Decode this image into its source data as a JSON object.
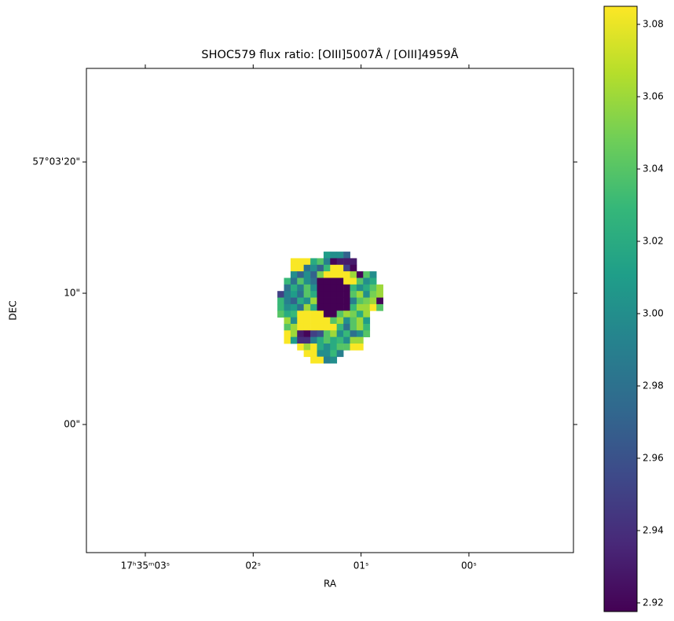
{
  "chart_data": {
    "type": "heatmap",
    "title": "SHOC579 flux ratio: [OIII]5007Å / [OIII]4959Å",
    "x_label": "RA",
    "y_label": "DEC",
    "colormap": "viridis",
    "xlim": [
      3.546,
      -0.969
    ],
    "ylim": [
      -9.76,
      27.13
    ],
    "xticks": [
      {
        "value": 3,
        "label": "17ʰ35ᵐ03ˢ"
      },
      {
        "value": 2,
        "label": "02ˢ"
      },
      {
        "value": 1,
        "label": "01ˢ"
      },
      {
        "value": 0,
        "label": "00ˢ"
      }
    ],
    "yticks": [
      {
        "value": 20,
        "label": "57°03'20\""
      },
      {
        "value": 10,
        "label": "10\""
      },
      {
        "value": 0,
        "label": "00\""
      }
    ],
    "clim": [
      2.9176,
      3.085
    ],
    "cticks": [
      2.92,
      2.94,
      2.96,
      2.98,
      {
        "value": 3,
        "label": "3.00"
      },
      3.02,
      3.04,
      3.06,
      3.08
    ],
    "x": [
      1.745,
      1.684,
      1.623,
      1.562,
      1.501,
      1.439,
      1.378,
      1.317,
      1.256,
      1.195,
      1.133,
      1.072,
      1.011,
      0.95,
      0.889,
      0.827,
      0.766
    ],
    "y": [
      12.92,
      12.42,
      11.92,
      11.42,
      10.92,
      10.42,
      9.92,
      9.42,
      8.92,
      8.42,
      7.92,
      7.42,
      6.92,
      6.42,
      5.92,
      5.42,
      4.92
    ],
    "values": [
      [
        null,
        null,
        null,
        null,
        null,
        null,
        null,
        3.01,
        3.0,
        3.0,
        2.97,
        null,
        null,
        null,
        null,
        null,
        null
      ],
      [
        null,
        null,
        3.084,
        3.084,
        3.084,
        3.02,
        3.04,
        2.99,
        2.92,
        2.93,
        2.93,
        2.93,
        null,
        null,
        null,
        null,
        null
      ],
      [
        null,
        null,
        3.084,
        3.084,
        2.98,
        3.0,
        2.97,
        3.03,
        3.084,
        3.084,
        2.95,
        2.92,
        null,
        null,
        null,
        null,
        null
      ],
      [
        null,
        null,
        3.0,
        2.97,
        3.0,
        2.97,
        3.05,
        3.084,
        3.084,
        3.084,
        3.084,
        3.06,
        2.92,
        3.04,
        3.0,
        null,
        null
      ],
      [
        null,
        3.03,
        2.98,
        3.04,
        3.0,
        2.98,
        2.917,
        2.917,
        2.917,
        2.917,
        3.084,
        3.084,
        3.04,
        3.0,
        3.02,
        null,
        null
      ],
      [
        null,
        2.98,
        3.02,
        2.99,
        3.04,
        3.0,
        2.917,
        2.917,
        2.917,
        2.917,
        2.917,
        3.03,
        3.0,
        3.02,
        3.04,
        3.06,
        null
      ],
      [
        2.95,
        2.99,
        3.01,
        2.98,
        3.04,
        3.02,
        2.917,
        2.917,
        2.917,
        2.917,
        2.917,
        3.04,
        3.06,
        3.0,
        3.05,
        3.06,
        null
      ],
      [
        3.03,
        2.99,
        2.97,
        3.02,
        3.0,
        3.06,
        2.917,
        2.917,
        2.917,
        2.917,
        2.917,
        2.99,
        3.04,
        3.05,
        3.06,
        2.92,
        null
      ],
      [
        3.03,
        3.0,
        3.01,
        2.98,
        3.06,
        3.02,
        2.917,
        2.917,
        2.917,
        2.917,
        2.917,
        3.03,
        3.06,
        3.06,
        3.084,
        3.04,
        null
      ],
      [
        3.04,
        3.02,
        3.03,
        3.084,
        3.084,
        3.084,
        3.084,
        2.917,
        2.917,
        3.04,
        3.06,
        3.05,
        3.02,
        3.06,
        null,
        null,
        null
      ],
      [
        null,
        3.06,
        3.0,
        3.084,
        3.084,
        3.084,
        3.084,
        3.084,
        3.04,
        3.06,
        3.0,
        3.04,
        3.06,
        3.01,
        null,
        null,
        null
      ],
      [
        null,
        3.04,
        3.06,
        3.084,
        3.084,
        3.084,
        3.084,
        3.084,
        3.084,
        3.03,
        2.98,
        3.04,
        3.06,
        3.03,
        null,
        null,
        null
      ],
      [
        null,
        3.084,
        3.06,
        2.93,
        2.92,
        2.95,
        2.96,
        3.04,
        3.06,
        3.0,
        3.03,
        2.98,
        3.0,
        3.04,
        null,
        null,
        null
      ],
      [
        null,
        3.084,
        3.01,
        2.94,
        2.94,
        2.99,
        3.02,
        3.04,
        3.02,
        3.03,
        3.0,
        3.06,
        3.06,
        null,
        null,
        null,
        null
      ],
      [
        null,
        null,
        null,
        3.084,
        3.06,
        3.084,
        3.02,
        3.0,
        3.02,
        3.04,
        3.04,
        3.084,
        3.084,
        null,
        null,
        null,
        null
      ],
      [
        null,
        null,
        null,
        null,
        3.084,
        3.084,
        3.0,
        3.0,
        3.03,
        2.99,
        null,
        null,
        null,
        null,
        null,
        null,
        null
      ],
      [
        null,
        null,
        null,
        null,
        null,
        3.084,
        3.084,
        2.99,
        3.0,
        null,
        null,
        null,
        null,
        null,
        null,
        null,
        null
      ]
    ]
  }
}
